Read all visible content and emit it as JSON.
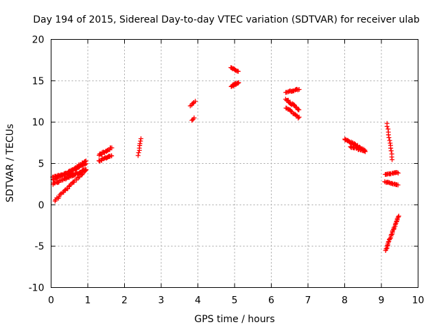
{
  "chart_data": {
    "type": "scatter",
    "title": "Day 194 of 2015, Sidereal Day-to-day VTEC variation (SDTVAR) for receiver ulab",
    "xlabel": "GPS time / hours",
    "ylabel": "SDTVAR / TECUs",
    "xlim": [
      0,
      10
    ],
    "ylim": [
      -10,
      20
    ],
    "xticks": [
      0,
      1,
      2,
      3,
      4,
      5,
      6,
      7,
      8,
      9,
      10
    ],
    "yticks": [
      -10,
      -5,
      0,
      5,
      10,
      15,
      20
    ],
    "grid": true,
    "marker": "+",
    "color": "#ff0000",
    "series": [
      {
        "name": "SDTVAR",
        "segments": [
          {
            "x": [
              0.05,
              0.95
            ],
            "y": [
              2.5,
              4.3
            ],
            "n": 40,
            "spread": 0.2
          },
          {
            "x": [
              0.05,
              0.95
            ],
            "y": [
              3.0,
              5.0
            ],
            "n": 40,
            "spread": 0.2
          },
          {
            "x": [
              0.05,
              0.6
            ],
            "y": [
              3.4,
              3.8
            ],
            "n": 25,
            "spread": 0.12
          },
          {
            "x": [
              0.1,
              0.95
            ],
            "y": [
              0.5,
              4.2
            ],
            "n": 30,
            "spread": 0.2
          },
          {
            "x": [
              0.5,
              0.95
            ],
            "y": [
              4.0,
              5.3
            ],
            "n": 18,
            "spread": 0.15
          },
          {
            "x": [
              1.3,
              1.65
            ],
            "y": [
              5.3,
              6.0
            ],
            "n": 18,
            "spread": 0.2
          },
          {
            "x": [
              1.3,
              1.65
            ],
            "y": [
              6.0,
              6.9
            ],
            "n": 18,
            "spread": 0.2
          },
          {
            "x": [
              2.38,
              2.45
            ],
            "y": [
              6.0,
              8.0
            ],
            "n": 8,
            "spread": 0.1
          },
          {
            "x": [
              3.8,
              3.92
            ],
            "y": [
              12.0,
              12.5
            ],
            "n": 6,
            "spread": 0.08
          },
          {
            "x": [
              3.84,
              3.9
            ],
            "y": [
              10.2,
              10.5
            ],
            "n": 3,
            "spread": 0.05
          },
          {
            "x": [
              4.9,
              5.1
            ],
            "y": [
              16.6,
              16.1
            ],
            "n": 10,
            "spread": 0.1
          },
          {
            "x": [
              4.9,
              5.1
            ],
            "y": [
              14.3,
              14.8
            ],
            "n": 14,
            "spread": 0.2
          },
          {
            "x": [
              6.4,
              6.75
            ],
            "y": [
              13.6,
              14.0
            ],
            "n": 14,
            "spread": 0.15
          },
          {
            "x": [
              6.4,
              6.75
            ],
            "y": [
              12.8,
              11.5
            ],
            "n": 18,
            "spread": 0.25
          },
          {
            "x": [
              6.4,
              6.75
            ],
            "y": [
              11.8,
              10.5
            ],
            "n": 16,
            "spread": 0.2
          },
          {
            "x": [
              8.0,
              8.55
            ],
            "y": [
              8.0,
              6.5
            ],
            "n": 30,
            "spread": 0.25
          },
          {
            "x": [
              8.15,
              8.55
            ],
            "y": [
              7.0,
              6.5
            ],
            "n": 14,
            "spread": 0.15
          },
          {
            "x": [
              9.15,
              9.3
            ],
            "y": [
              9.8,
              5.5
            ],
            "n": 14,
            "spread": 0.1
          },
          {
            "x": [
              9.1,
              9.45
            ],
            "y": [
              3.7,
              3.9
            ],
            "n": 14,
            "spread": 0.12
          },
          {
            "x": [
              9.1,
              9.45
            ],
            "y": [
              2.8,
              2.4
            ],
            "n": 14,
            "spread": 0.1
          },
          {
            "x": [
              9.12,
              9.47
            ],
            "y": [
              -5.5,
              -1.3
            ],
            "n": 28,
            "spread": 0.12
          }
        ]
      }
    ]
  }
}
